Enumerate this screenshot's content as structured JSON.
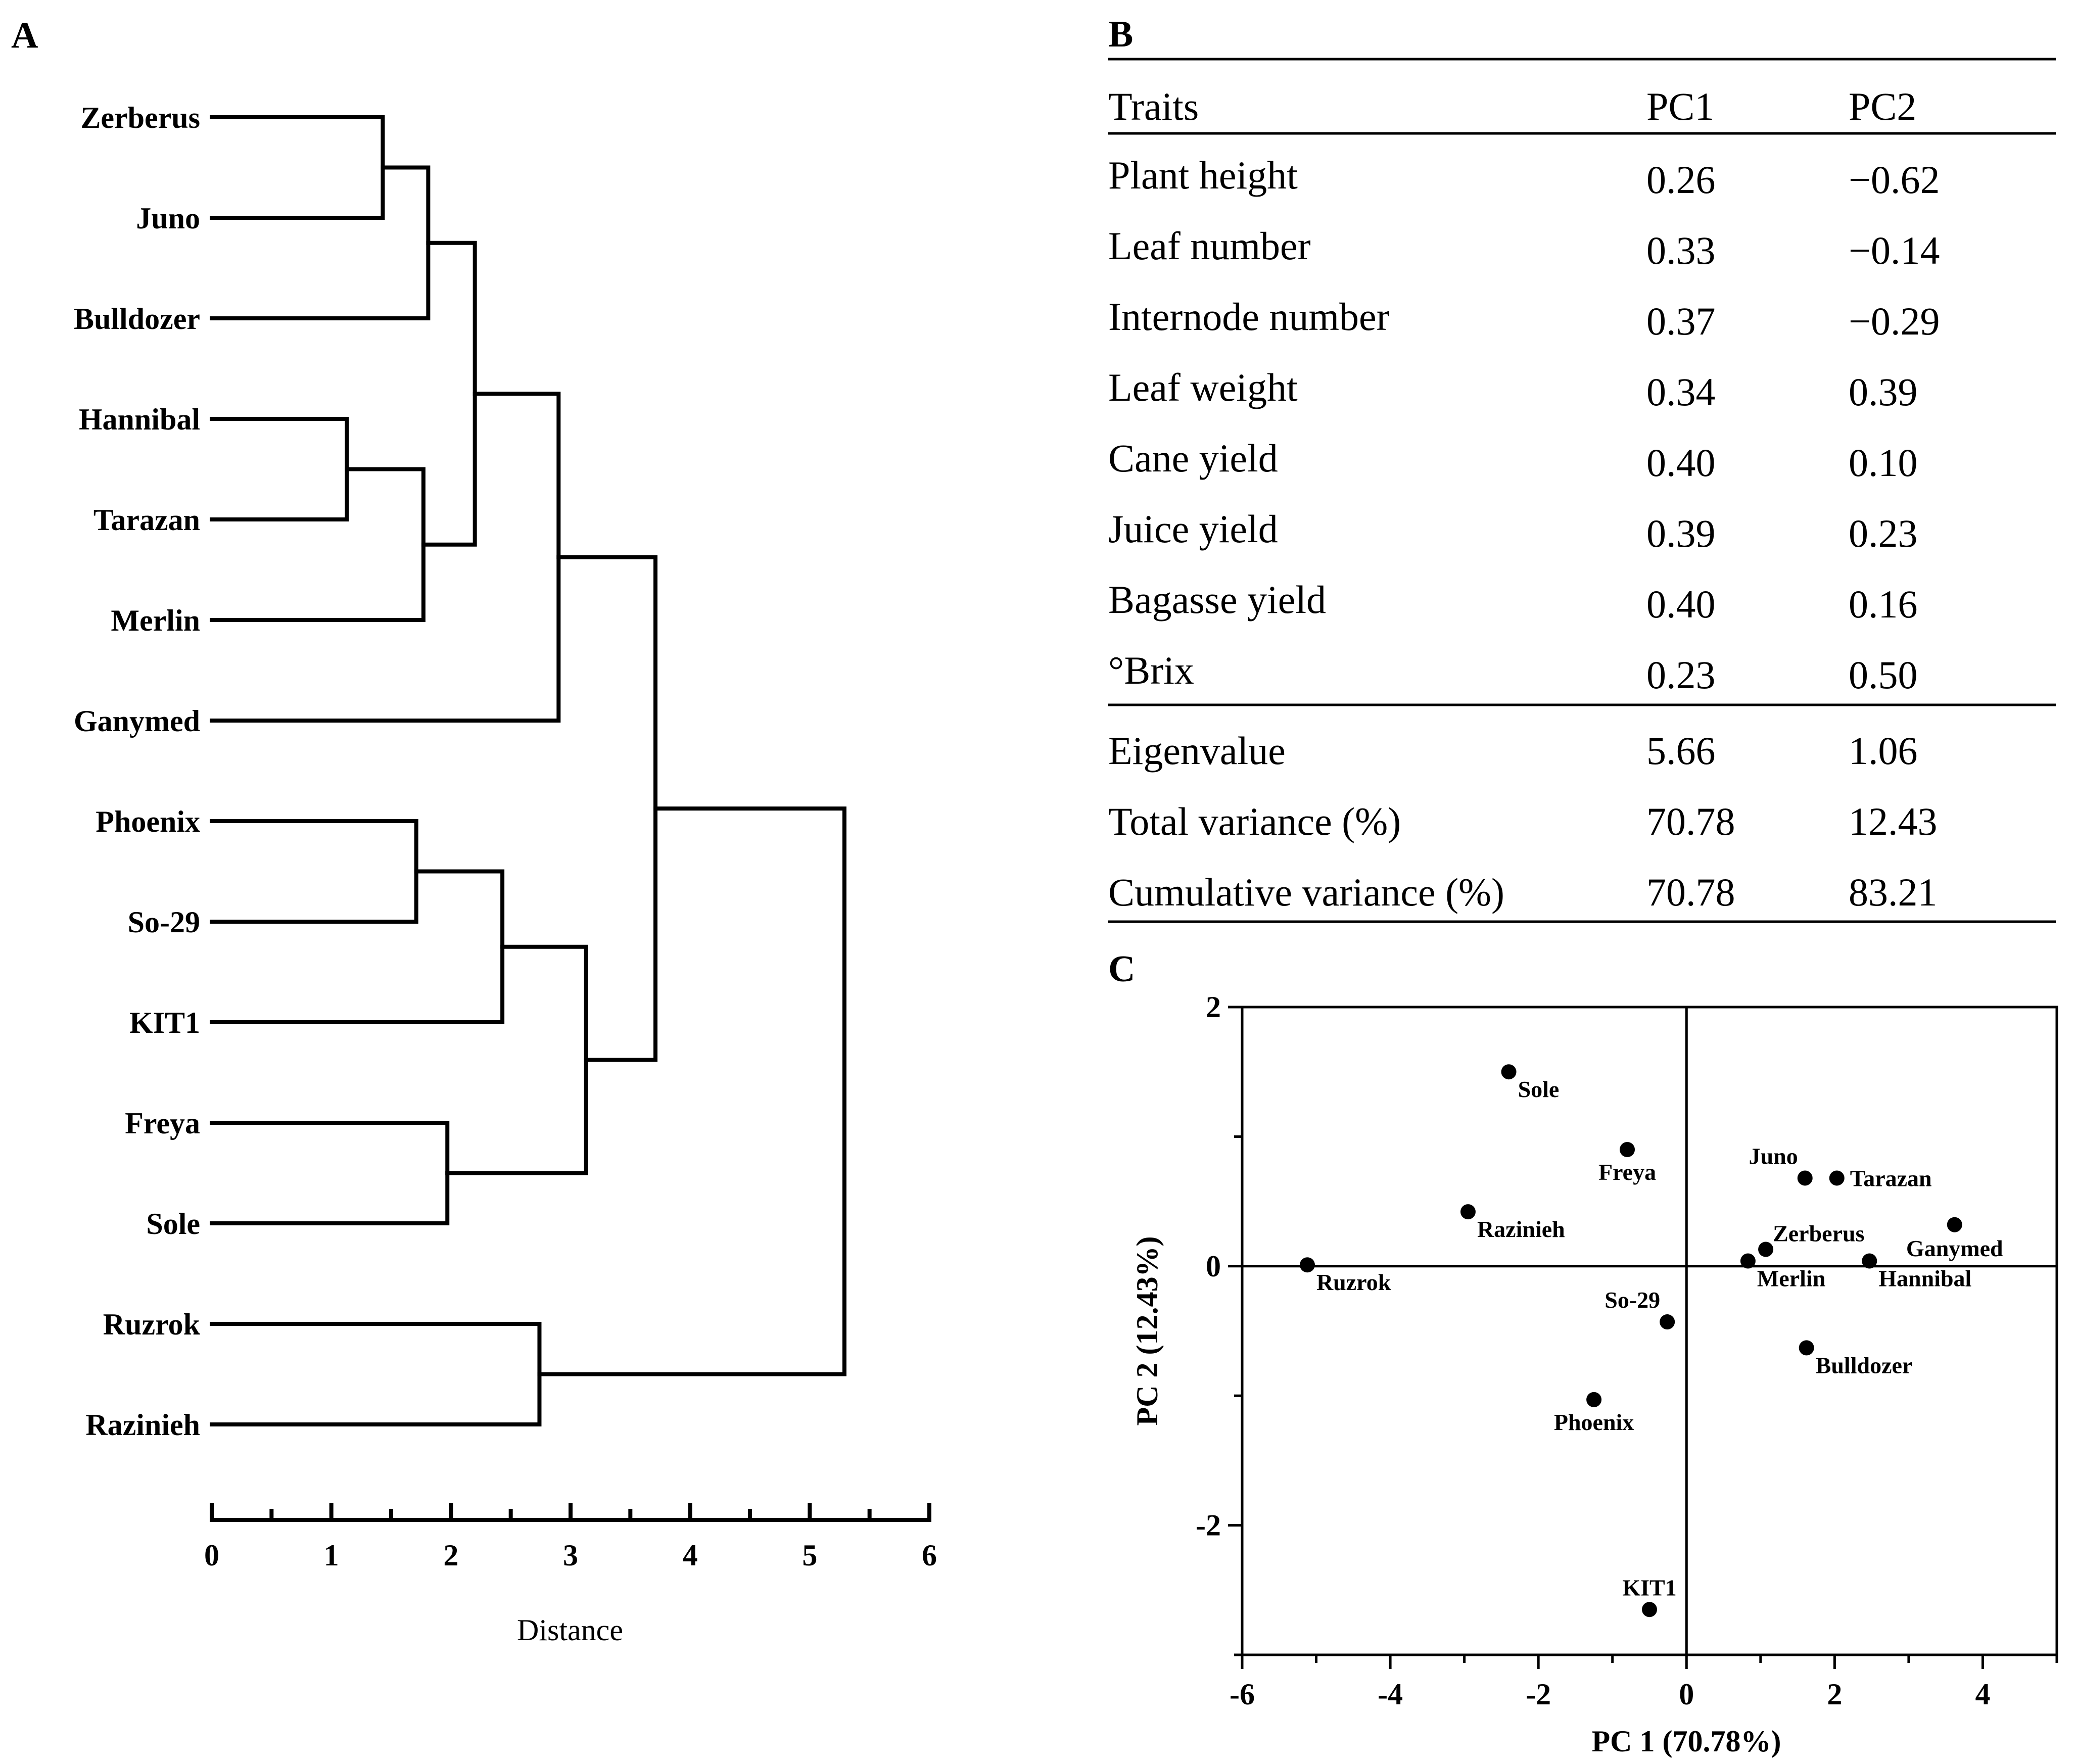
{
  "panels": {
    "a": "A",
    "b": "B",
    "c": "C"
  },
  "chart_data": [
    {
      "type": "dendrogram",
      "panel": "A",
      "xlabel": "Distance",
      "xlim": [
        0,
        6
      ],
      "xticks": [
        "0",
        "1",
        "2",
        "3",
        "4",
        "5",
        "6"
      ],
      "leaves": [
        "Zerberus",
        "Juno",
        "Bulldozer",
        "Hannibal",
        "Tarazan",
        "Merlin",
        "Ganymed",
        "Phoenix",
        "So-29",
        "KIT1",
        "Freya",
        "Sole",
        "Ruzrok",
        "Razinieh"
      ],
      "merges": [
        {
          "left": "L0",
          "right": "L1",
          "height": 1.43
        },
        {
          "left": "N0",
          "right": "L2",
          "height": 1.81
        },
        {
          "left": "L3",
          "right": "L4",
          "height": 1.13
        },
        {
          "left": "N2",
          "right": "L5",
          "height": 1.77
        },
        {
          "left": "N1",
          "right": "N3",
          "height": 2.2
        },
        {
          "left": "N4",
          "right": "L6",
          "height": 2.9
        },
        {
          "left": "L7",
          "right": "L8",
          "height": 1.71
        },
        {
          "left": "N6",
          "right": "L9",
          "height": 2.43
        },
        {
          "left": "L10",
          "right": "L11",
          "height": 1.97
        },
        {
          "left": "N7",
          "right": "N8",
          "height": 3.13
        },
        {
          "left": "N5",
          "right": "N9",
          "height": 3.71
        },
        {
          "left": "L12",
          "right": "L13",
          "height": 2.74
        },
        {
          "left": "N10",
          "right": "N11",
          "height": 5.29
        }
      ]
    },
    {
      "type": "table",
      "panel": "B",
      "columns": [
        "Traits",
        "PC1",
        "PC2"
      ],
      "rows": [
        [
          "Plant height",
          "0.26",
          "−0.62"
        ],
        [
          "Leaf number",
          "0.33",
          "−0.14"
        ],
        [
          "Internode number",
          "0.37",
          "−0.29"
        ],
        [
          "Leaf weight",
          "0.34",
          "0.39"
        ],
        [
          "Cane yield",
          "0.40",
          "0.10"
        ],
        [
          "Juice yield",
          "0.39",
          "0.23"
        ],
        [
          "Bagasse yield",
          "0.40",
          "0.16"
        ],
        [
          "°Brix",
          "0.23",
          "0.50"
        ]
      ],
      "summary_rows": [
        [
          "Eigenvalue",
          "5.66",
          "1.06"
        ],
        [
          "Total variance (%)",
          "70.78",
          "12.43"
        ],
        [
          "Cumulative variance (%)",
          "70.78",
          "83.21"
        ]
      ]
    },
    {
      "type": "scatter",
      "panel": "C",
      "xlabel": "PC 1 (70.78%)",
      "ylabel": "PC 2 (12.43%)",
      "xlim": [
        -6,
        5
      ],
      "ylim": [
        -3,
        2
      ],
      "xticks": [
        -6,
        -4,
        -2,
        0,
        2,
        4
      ],
      "yticks": [
        2,
        0,
        -2
      ],
      "points": [
        {
          "label": "Sole",
          "x": -2.4,
          "y": 1.5,
          "pos": "br"
        },
        {
          "label": "Freya",
          "x": -0.8,
          "y": 0.9,
          "pos": "b"
        },
        {
          "label": "Juno",
          "x": 1.6,
          "y": 0.68,
          "pos": "tl"
        },
        {
          "label": "Tarazan",
          "x": 2.03,
          "y": 0.68,
          "pos": "r"
        },
        {
          "label": "Ganymed",
          "x": 3.62,
          "y": 0.32,
          "pos": "bl"
        },
        {
          "label": "Razinieh",
          "x": -2.95,
          "y": 0.42,
          "pos": "br"
        },
        {
          "label": "Zerberus",
          "x": 1.07,
          "y": 0.13,
          "pos": "tr"
        },
        {
          "label": "Merlin",
          "x": 0.83,
          "y": 0.04,
          "pos": "br"
        },
        {
          "label": "Hannibal",
          "x": 2.47,
          "y": 0.04,
          "pos": "br"
        },
        {
          "label": "Ruzrok",
          "x": -5.12,
          "y": 0.01,
          "pos": "br"
        },
        {
          "label": "So-29",
          "x": -0.26,
          "y": -0.43,
          "pos": "tl"
        },
        {
          "label": "Bulldozer",
          "x": 1.62,
          "y": -0.63,
          "pos": "br"
        },
        {
          "label": "Phoenix",
          "x": -1.25,
          "y": -1.03,
          "pos": "b"
        },
        {
          "label": "KIT1",
          "x": -0.5,
          "y": -2.65,
          "pos": "t"
        }
      ]
    }
  ]
}
